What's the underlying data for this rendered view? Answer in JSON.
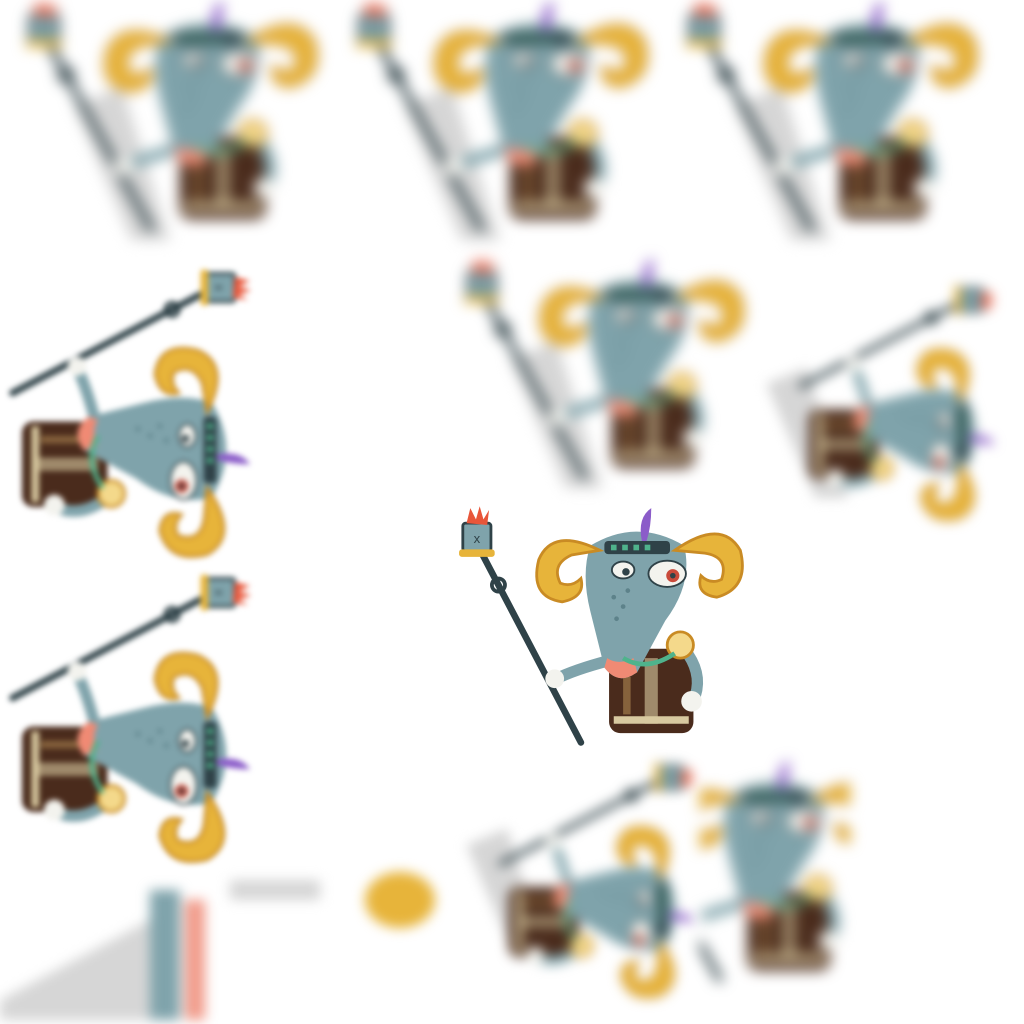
{
  "sheet": {
    "background": "#ffffff",
    "kind": "sprite-sheet",
    "character": "ram-shaman-with-staff"
  },
  "palette": {
    "fur": "#7fa3ab",
    "fur_dark": "#5d828a",
    "horn": "#e7b43a",
    "horn_band": "#c98b24",
    "horn_light": "#f4d98b",
    "robe": "#4a2b1c",
    "robe_trim": "#d8c9a0",
    "staff": "#2f4248",
    "flame": "#e8563a",
    "feather": "#8b5cc9",
    "nose": "#f08a74",
    "eye_white": "#f3f3ee",
    "eye_red": "#c94a3a",
    "necklace": "#4fb38c",
    "shadow_gray": "#d6d6d6"
  },
  "frames": [
    {
      "id": "f1",
      "state": "smeared-horizontal",
      "icon": "ram-sprite"
    },
    {
      "id": "f2",
      "state": "smeared-horizontal",
      "icon": "ram-sprite"
    },
    {
      "id": "f3",
      "state": "smeared-horizontal",
      "icon": "ram-sprite"
    },
    {
      "id": "f4",
      "state": "rotated-left",
      "icon": "ram-sprite"
    },
    {
      "id": "f5",
      "state": "smeared-horizontal",
      "icon": "ram-sprite"
    },
    {
      "id": "f6",
      "state": "smeared-vertical",
      "icon": "ram-sprite"
    },
    {
      "id": "f7",
      "state": "rotated-left",
      "icon": "ram-sprite"
    },
    {
      "id": "f8",
      "state": "clear-idle",
      "icon": "ram-sprite"
    },
    {
      "id": "f9",
      "state": "smeared-vertical",
      "icon": "ram-sprite"
    },
    {
      "id": "f10",
      "state": "smeared-horizontal",
      "icon": "ram-sprite"
    },
    {
      "id": "f11",
      "state": "smeared-vertical",
      "icon": "ram-sprite"
    },
    {
      "id": "f12",
      "state": "smeared-fragment",
      "icon": "ram-sprite"
    }
  ]
}
